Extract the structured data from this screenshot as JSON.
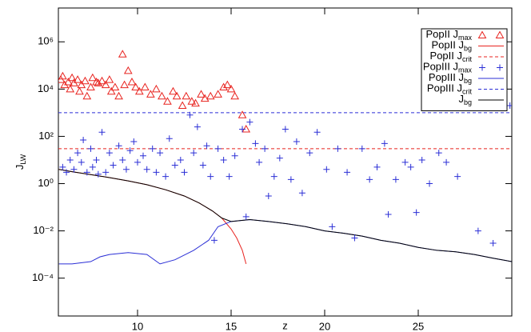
{
  "chart_data": {
    "type": "scatter",
    "xlabel": "z",
    "ylabel": "JLW",
    "ylabel_sub_from": 1,
    "xlim": [
      5.77,
      30
    ],
    "xticks": [
      10,
      15,
      20,
      25
    ],
    "ylim": [
      2.5e-06,
      27000000
    ],
    "log_y": true,
    "yticks": [
      {
        "value": 0.0001,
        "label": "10⁻⁴"
      },
      {
        "value": 0.01,
        "label": "10⁻²"
      },
      {
        "value": 1,
        "label": "10⁰"
      },
      {
        "value": 100,
        "label": "10²"
      },
      {
        "value": 10000,
        "label": "10⁴"
      },
      {
        "value": 1000000,
        "label": "10⁶"
      }
    ],
    "legend": "upper right",
    "series": [
      {
        "name": "PopII Jmax",
        "color": "#e8231f",
        "style": "triangle",
        "x": [
          5.9,
          6.0,
          6.1,
          6.3,
          6.4,
          6.5,
          6.6,
          6.8,
          6.9,
          7.0,
          7.2,
          7.3,
          7.5,
          7.6,
          7.8,
          7.9,
          8.1,
          8.3,
          8.5,
          8.6,
          8.8,
          9.0,
          9.2,
          9.3,
          9.5,
          9.7,
          9.9,
          10.1,
          10.4,
          10.7,
          11.0,
          11.3,
          11.6,
          11.9,
          12.1,
          12.4,
          12.6,
          12.9,
          13.1,
          13.4,
          13.6,
          13.9,
          14.3,
          14.6,
          14.8,
          15.0,
          15.2,
          15.6,
          15.8
        ],
        "values": [
          25000,
          35000,
          15000,
          20000,
          10000,
          30000,
          18000,
          25000,
          8000,
          15000,
          22000,
          5000,
          12000,
          30000,
          20000,
          18000,
          22000,
          15000,
          25000,
          8000,
          12000,
          5000,
          300000,
          15000,
          60000,
          20000,
          12000,
          8000,
          12000,
          6000,
          10000,
          5000,
          3000,
          8000,
          5000,
          2000,
          5000,
          3000,
          2500,
          6000,
          4000,
          5000,
          6000,
          12000,
          15000,
          10000,
          5000,
          800,
          200
        ]
      },
      {
        "name": "PopII Jbg",
        "color": "#e8231f",
        "style": "solid",
        "x": [
          5.8,
          6.5,
          7.5,
          8.5,
          9.5,
          10.5,
          11.5,
          12.5,
          13.3,
          14.0,
          14.5,
          15.0,
          15.3,
          15.6,
          15.8
        ],
        "values": [
          4,
          3.2,
          2.4,
          1.8,
          1.3,
          0.9,
          0.55,
          0.3,
          0.15,
          0.07,
          0.035,
          0.012,
          0.005,
          0.0015,
          0.0004
        ]
      },
      {
        "name": "PopII Jcrit",
        "color": "#e8231f",
        "style": "dashed-hline",
        "values": [
          30
        ]
      },
      {
        "name": "PopIII Jmax",
        "color": "#2b2fd6",
        "style": "plus",
        "x": [
          6.0,
          6.2,
          6.4,
          6.6,
          6.8,
          7.0,
          7.1,
          7.3,
          7.5,
          7.6,
          7.8,
          7.9,
          8.1,
          8.3,
          8.5,
          8.7,
          9.0,
          9.2,
          9.4,
          9.6,
          9.8,
          10.0,
          10.3,
          10.5,
          10.8,
          11.0,
          11.2,
          11.5,
          11.7,
          12.0,
          12.3,
          12.5,
          12.8,
          13.0,
          13.2,
          13.5,
          13.7,
          13.9,
          14.1,
          14.3,
          14.6,
          14.9,
          15.2,
          15.6,
          15.8,
          16.0,
          16.3,
          16.5,
          16.8,
          17.0,
          17.3,
          17.6,
          17.9,
          18.2,
          18.5,
          18.8,
          19.2,
          19.6,
          20.1,
          20.4,
          20.7,
          21.2,
          21.6,
          22.0,
          22.4,
          22.8,
          23.2,
          23.4,
          23.8,
          24.3,
          24.6,
          24.9,
          25.2,
          25.6,
          26.1,
          26.5,
          27.1,
          28.2,
          29.0,
          29.9
        ],
        "values": [
          5,
          3,
          10,
          4,
          20,
          8,
          70,
          3,
          30,
          5,
          10,
          2.5,
          150,
          3,
          20,
          6,
          40,
          10,
          4,
          25,
          60,
          8,
          15,
          4,
          30,
          3,
          20,
          2,
          80,
          6,
          10,
          3,
          800,
          20,
          250,
          6,
          40,
          2,
          0.004,
          30,
          10,
          2,
          15,
          200,
          0.04,
          400,
          50,
          8,
          30,
          0.3,
          2,
          12,
          200,
          1.5,
          60,
          0.4,
          20,
          150,
          4,
          0.015,
          30,
          3,
          0.005,
          30,
          1.5,
          5,
          50,
          0.05,
          1.5,
          8,
          5,
          0.06,
          10,
          1,
          20,
          8,
          2,
          0.01,
          0.003,
          2000
        ]
      },
      {
        "name": "PopIII Jbg",
        "color": "#2b2fd6",
        "style": "solid",
        "x": [
          5.8,
          6.5,
          7.5,
          8.0,
          8.5,
          9.5,
          10.5,
          11.2,
          12.0,
          13.0,
          13.8,
          14.3,
          15.0,
          16.0,
          17.0,
          18.0,
          19.0,
          20.0,
          21.0,
          22.0,
          23.0,
          24.0,
          25.0,
          26.0,
          27.0,
          28.0,
          29.0,
          30.0
        ],
        "values": [
          0.0004,
          0.0004,
          0.0005,
          0.0008,
          0.001,
          0.0012,
          0.001,
          0.0004,
          0.0006,
          0.0015,
          0.004,
          0.015,
          0.025,
          0.03,
          0.025,
          0.02,
          0.015,
          0.01,
          0.008,
          0.006,
          0.004,
          0.003,
          0.002,
          0.0015,
          0.0013,
          0.001,
          0.0007,
          0.0005
        ]
      },
      {
        "name": "PopIII Jcrit",
        "color": "#2b2fd6",
        "style": "dashed-hline",
        "values": [
          1000
        ]
      },
      {
        "name": "Jbg",
        "color": "#000000",
        "style": "solid",
        "x": [
          5.8,
          6.5,
          7.5,
          8.5,
          9.5,
          10.5,
          11.5,
          12.5,
          13.3,
          14.0,
          14.5,
          15.0,
          16.0,
          17.0,
          18.0,
          19.0,
          20.0,
          21.0,
          22.0,
          23.0,
          24.0,
          25.0,
          26.0,
          27.0,
          28.0,
          29.0,
          30.0
        ],
        "values": [
          4,
          3.2,
          2.4,
          1.8,
          1.3,
          0.9,
          0.55,
          0.3,
          0.15,
          0.07,
          0.035,
          0.025,
          0.03,
          0.025,
          0.02,
          0.015,
          0.01,
          0.008,
          0.006,
          0.004,
          0.003,
          0.002,
          0.0015,
          0.0013,
          0.001,
          0.0007,
          0.0005
        ]
      }
    ]
  }
}
